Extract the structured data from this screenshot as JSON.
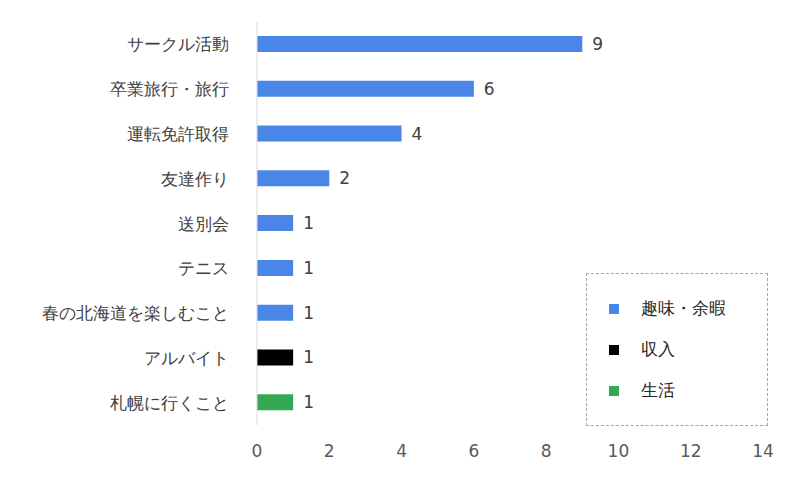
{
  "chart_data": {
    "type": "bar",
    "orientation": "horizontal",
    "stacked": true,
    "data_labels": true,
    "grid": false,
    "legend": "lower right",
    "categories": [
      "サークル活動",
      "卒業旅行・旅行",
      "運転免許取得",
      "友達作り",
      "送別会",
      "テニス",
      "春の北海道を楽しむこと",
      "アルバイト",
      "札幌に行くこと"
    ],
    "series": [
      {
        "name": "趣味・余暇",
        "color": "#4a86e8",
        "values": [
          9,
          6,
          4,
          2,
          1,
          1,
          1,
          null,
          null
        ]
      },
      {
        "name": "収入",
        "color": "#000000",
        "values": [
          null,
          null,
          null,
          null,
          null,
          null,
          null,
          1,
          null
        ]
      },
      {
        "name": "生活",
        "color": "#34a853",
        "values": [
          null,
          null,
          null,
          null,
          null,
          null,
          null,
          null,
          1
        ]
      }
    ],
    "xlim": [
      0,
      14
    ],
    "xticks": [
      0,
      2,
      4,
      6,
      8,
      10,
      12,
      14
    ]
  }
}
